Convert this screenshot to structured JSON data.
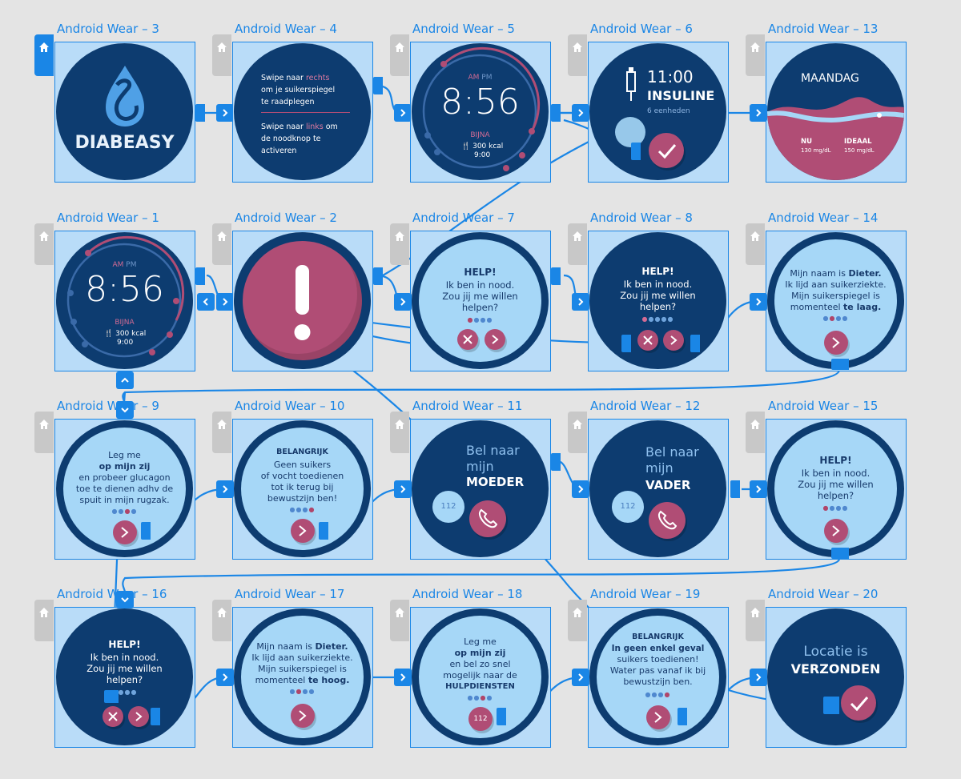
{
  "artboards": [
    {
      "label": "Android Wear – 3"
    },
    {
      "label": "Android Wear – 4"
    },
    {
      "label": "Android Wear – 5"
    },
    {
      "label": "Android Wear – 6"
    },
    {
      "label": "Android Wear – 13"
    },
    {
      "label": "Android Wear – 1"
    },
    {
      "label": "Android Wear – 2"
    },
    {
      "label": "Android Wear – 7"
    },
    {
      "label": "Android Wear – 8"
    },
    {
      "label": "Android Wear – 14"
    },
    {
      "label": "Android Wear – 9"
    },
    {
      "label": "Android Wear – 10"
    },
    {
      "label": "Android Wear – 11"
    },
    {
      "label": "Android Wear – 12"
    },
    {
      "label": "Android Wear – 15"
    },
    {
      "label": "Android Wear – 16"
    },
    {
      "label": "Android Wear – 17"
    },
    {
      "label": "Android Wear – 18"
    },
    {
      "label": "Android Wear – 19"
    },
    {
      "label": "Android Wear – 20"
    }
  ],
  "screens": {
    "s3": {
      "brand": "DIABEASY"
    },
    "s4": {
      "line1a": "Swipe naar ",
      "line1b": "rechts",
      "line2": "om je suikerspiegel",
      "line3": "te raadplegen",
      "line4a": "Swipe naar ",
      "line4b": "links",
      "line4c": " om",
      "line5": "de noodknop te",
      "line6": "activeren"
    },
    "s5": {
      "am": "AM",
      "pm": "PM",
      "time": "8:56",
      "status": "BIJNA",
      "kcal": "300 kcal",
      "clock": "9:00"
    },
    "s6": {
      "time": "11:00",
      "title": "INSULINE",
      "sub": "6 eenheden"
    },
    "s13": {
      "day": "MAANDAG",
      "nu": "NU",
      "nu_val": "130 mg/dL",
      "ideaal": "IDEAAL",
      "ideaal_val": "150 mg/dL"
    },
    "s1": {
      "am": "AM",
      "pm": "PM",
      "time": "8:56",
      "status": "BIJNA",
      "kcal": "300 kcal",
      "clock": "9:00"
    },
    "s7": {
      "l1": "HELP!",
      "l2": "Ik ben in nood.",
      "l3": "Zou jij me willen",
      "l4": "helpen?"
    },
    "s8": {
      "l1": "HELP!",
      "l2": "Ik ben in nood.",
      "l3": "Zou jij me willen",
      "l4": "helpen?"
    },
    "s14": {
      "l1a": "Mijn naam is ",
      "l1b": "Dieter.",
      "l2": "Ik lijd aan suikerziekte.",
      "l3": "Mijn suikerspiegel is",
      "l4a": "momenteel ",
      "l4b": "te laag."
    },
    "s9": {
      "l1": "Leg me",
      "l2": "op mijn zij",
      "l3": "en probeer glucagon",
      "l4": "toe te dienen adhv de",
      "l5": "spuit in mijn rugzak."
    },
    "s10": {
      "l1": "BELANGRIJK",
      "l2": "Geen suikers",
      "l3": "of vocht toedienen",
      "l4": "tot ik terug bij",
      "l5": "bewustzijn ben!"
    },
    "s11": {
      "l1": "Bel naar",
      "l2": "mijn",
      "l3": "MOEDER",
      "num": "112"
    },
    "s12": {
      "l1": "Bel naar",
      "l2": "mijn",
      "l3": "VADER",
      "num": "112"
    },
    "s15": {
      "l1": "HELP!",
      "l2": "Ik ben in nood.",
      "l3": "Zou jij me willen",
      "l4": "helpen?"
    },
    "s16": {
      "l1": "HELP!",
      "l2": "Ik ben in nood.",
      "l3": "Zou jij me willen",
      "l4": "helpen?"
    },
    "s17": {
      "l1a": "Mijn naam is ",
      "l1b": "Dieter.",
      "l2": "Ik lijd aan suikerziekte.",
      "l3": "Mijn suikerspiegel is",
      "l4a": "momenteel ",
      "l4b": "te hoog."
    },
    "s18": {
      "l1": "Leg me",
      "l2": "op mijn zij",
      "l3": "en bel zo snel",
      "l4": "mogelijk naar de",
      "l5": "HULPDIENSTEN",
      "num": "112"
    },
    "s19": {
      "l1": "BELANGRIJK",
      "l2": "In geen enkel geval",
      "l3": "suikers toedienen!",
      "l4": "Water pas vanaf ik bij",
      "l5": "bewustzijn ben."
    },
    "s20": {
      "l1": "Locatie is",
      "l2": "VERZONDEN"
    }
  },
  "colors": {
    "accent": "#1a86e6",
    "navy": "#0d3c70",
    "pink": "#b04d75",
    "light": "#a6d7f7"
  }
}
